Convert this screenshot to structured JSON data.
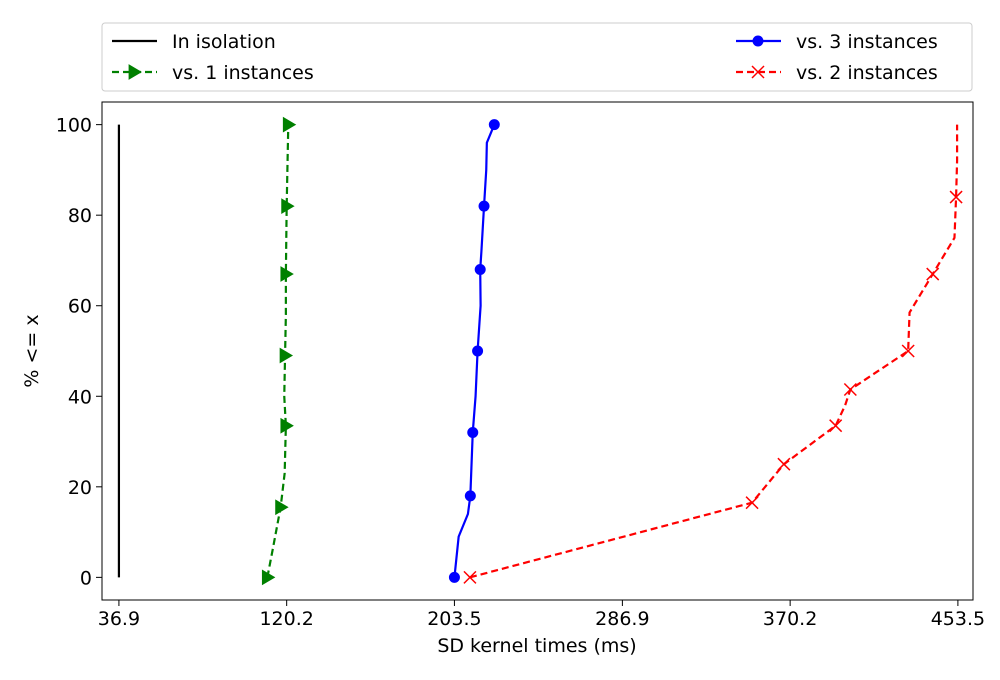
{
  "chart_data": {
    "type": "line",
    "xlabel": "SD kernel times (ms)",
    "ylabel": "% <= x",
    "xlim": [
      28.5,
      461.0
    ],
    "ylim": [
      -5,
      105
    ],
    "xticks": [
      36.9,
      120.2,
      203.5,
      286.9,
      370.2,
      453.5
    ],
    "xtick_labels": [
      "36.9",
      "120.2",
      "203.5",
      "286.9",
      "370.2",
      "453.5"
    ],
    "yticks": [
      0,
      20,
      40,
      60,
      80,
      100
    ],
    "ytick_labels": [
      "0",
      "20",
      "40",
      "60",
      "80",
      "100"
    ],
    "grid": false,
    "legend": {
      "placement": "top, outside plot, two columns",
      "order": [
        "In isolation",
        "vs. 1 instances",
        "vs. 3 instances",
        "vs. 2 instances"
      ]
    },
    "series": [
      {
        "name": "In isolation",
        "color": "#000000",
        "linestyle": "solid",
        "marker": "none",
        "x": [
          36.9,
          36.9
        ],
        "y": [
          0,
          100
        ]
      },
      {
        "name": "vs. 1 instances",
        "color": "#008000",
        "linestyle": "dashed",
        "marker": "triangle-right",
        "x": [
          110.6,
          113.2,
          117.2,
          119.2,
          119.8,
          119.0,
          119.4,
          119.8,
          119.8,
          120.2,
          121.0
        ],
        "y": [
          0,
          6,
          15.5,
          23,
          33.5,
          40,
          49,
          58,
          67,
          82,
          100
        ],
        "marker_indices": [
          0,
          2,
          4,
          6,
          8,
          9,
          10
        ]
      },
      {
        "name": "vs. 3 instances",
        "color": "#0000ff",
        "linestyle": "solid",
        "marker": "circle",
        "x": [
          203.5,
          205.6,
          210.2,
          211.4,
          212.6,
          214.0,
          215.0,
          216.5,
          216.3,
          216.9,
          218.2,
          219.3,
          219.6,
          223.3
        ],
        "y": [
          0,
          9,
          14,
          18,
          32,
          40,
          50,
          60,
          68,
          72,
          82,
          90,
          96,
          100
        ],
        "marker_indices": [
          0,
          3,
          4,
          6,
          8,
          10,
          13
        ]
      },
      {
        "name": "vs. 2 instances",
        "color": "#ff0000",
        "linestyle": "dashed",
        "marker": "x",
        "x": [
          211.2,
          351.3,
          367.1,
          392.8,
          397.5,
          400.1,
          428.8,
          429.5,
          441.0,
          451.8,
          452.6,
          453.1,
          453.1
        ],
        "y": [
          0,
          16.5,
          25,
          33.5,
          38,
          41.5,
          50,
          58.5,
          67,
          75,
          84,
          92,
          100
        ],
        "marker_indices": [
          0,
          1,
          2,
          3,
          5,
          6,
          8,
          10
        ]
      }
    ]
  }
}
